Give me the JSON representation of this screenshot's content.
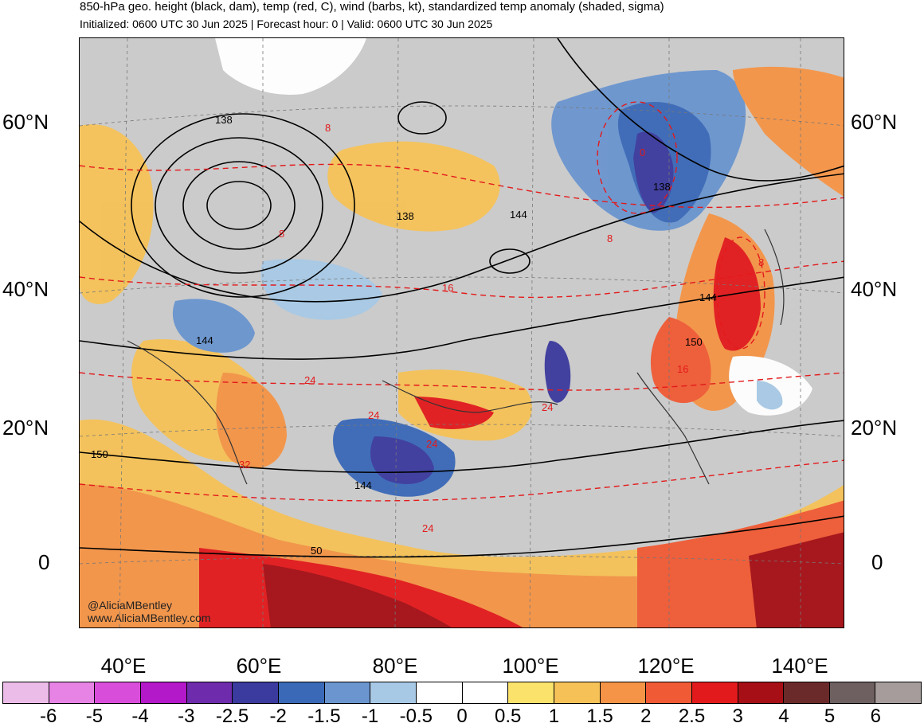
{
  "title": "850-hPa geo. height (black, dam), temp (red, C), wind (barbs, kt), standardized temp anomaly (shaded, sigma)",
  "subtitle": "Initialized: 0600 UTC 30 Jun 2025 | Forecast hour: 0 | Valid: 0600 UTC 30 Jun 2025",
  "credits": [
    "@AliciaMBentley",
    "www.AliciaMBentley.com"
  ],
  "lat_labels": [
    "60°N",
    "40°N",
    "20°N",
    "0"
  ],
  "lon_labels": [
    "40°E",
    "60°E",
    "80°E",
    "100°E",
    "120°E",
    "140°E"
  ],
  "height_contour_labels": [
    "138",
    "138",
    "144",
    "138",
    "144",
    "150",
    "144",
    "150",
    "144",
    "50"
  ],
  "temp_contour_labels": [
    "8",
    "8",
    "0",
    "8",
    "16",
    "24",
    "24",
    "24",
    "24",
    "32",
    "24",
    "16",
    "8"
  ],
  "colorbar": {
    "labels": [
      "-6",
      "-5",
      "-4",
      "-3",
      "-2.5",
      "-2",
      "-1.5",
      "-1",
      "-0.5",
      "0",
      "0.5",
      "1",
      "1.5",
      "2",
      "2.5",
      "3",
      "4",
      "5",
      "6"
    ],
    "colors": [
      "#ecbce9",
      "#e683e4",
      "#d94ddb",
      "#b318c9",
      "#6e2cac",
      "#3b3a9e",
      "#3a69b7",
      "#6a95cf",
      "#a8c9e6",
      "#ffffff",
      "#ffffff",
      "#fbe26b",
      "#f6c257",
      "#f59446",
      "#f05a34",
      "#e31a1c",
      "#a50f15",
      "#6b2a2a",
      "#6e6060",
      "#a69c9c"
    ]
  }
}
